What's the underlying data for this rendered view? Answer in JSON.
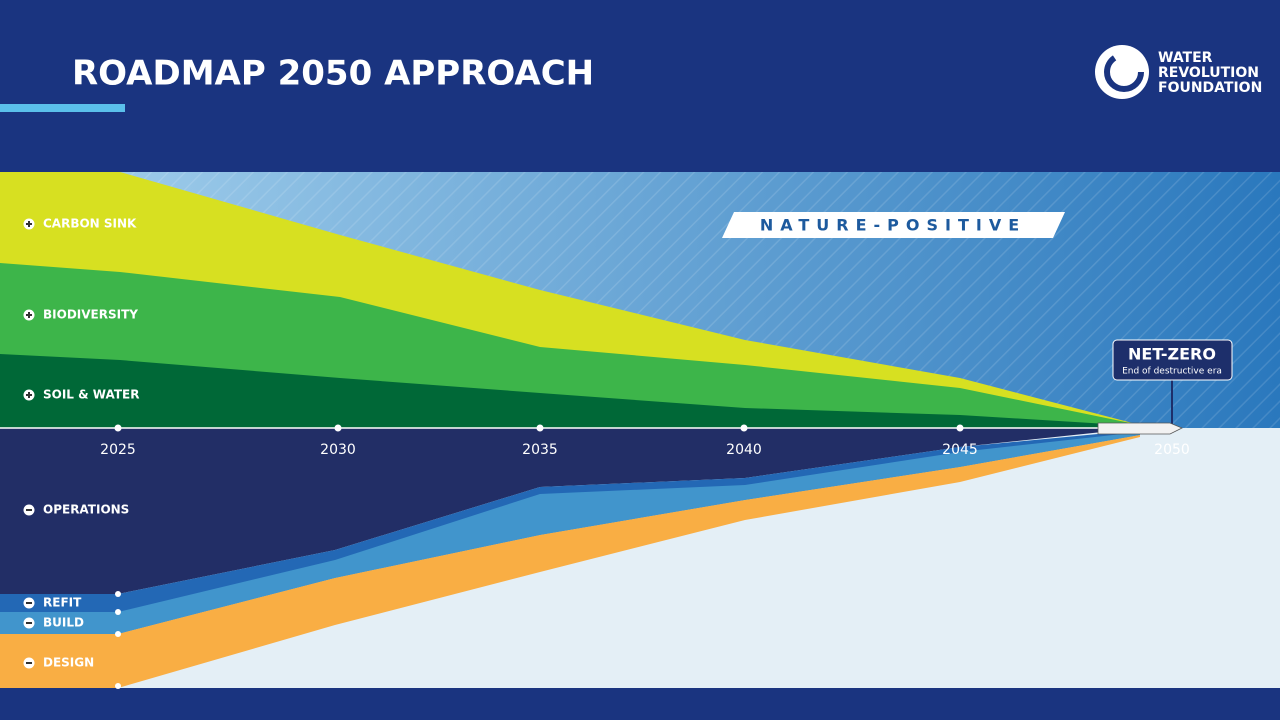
{
  "header": {
    "title": "ROADMAP 2050 APPROACH",
    "logo": [
      "WATER",
      "REVOLUTION",
      "FOUNDATION"
    ]
  },
  "banner": "NATURE-POSITIVE",
  "positive_labels": [
    "CARBON SINK",
    "BIODIVERSITY",
    "SOIL & WATER"
  ],
  "timeline": [
    "2025",
    "2030",
    "2035",
    "2040",
    "2045",
    "2050"
  ],
  "negative_labels": [
    "OPERATIONS",
    "REFIT",
    "BUILD",
    "DESIGN"
  ],
  "milestone": {
    "title": "NET-ZERO",
    "subtitle": "End of destructive era"
  }
}
